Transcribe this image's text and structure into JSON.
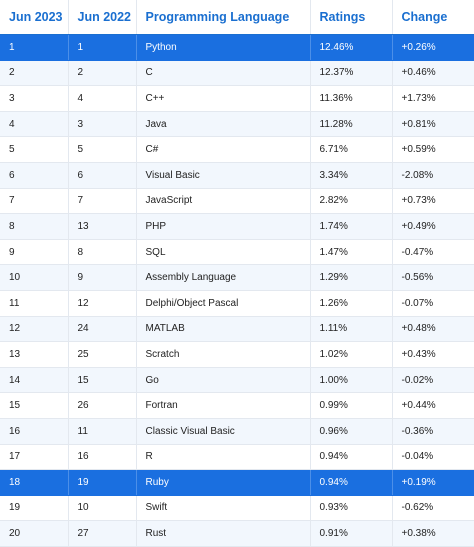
{
  "table": {
    "headers": [
      "Jun 2023",
      "Jun 2022",
      "Programming Language",
      "Ratings",
      "Change"
    ],
    "rows": [
      {
        "jun2023": "1",
        "jun2022": "1",
        "language": "Python",
        "rating": "12.46%",
        "change": "+0.26%",
        "highlighted": true
      },
      {
        "jun2023": "2",
        "jun2022": "2",
        "language": "C",
        "rating": "12.37%",
        "change": "+0.46%",
        "highlighted": false
      },
      {
        "jun2023": "3",
        "jun2022": "4",
        "language": "C++",
        "rating": "11.36%",
        "change": "+1.73%",
        "highlighted": false
      },
      {
        "jun2023": "4",
        "jun2022": "3",
        "language": "Java",
        "rating": "11.28%",
        "change": "+0.81%",
        "highlighted": false
      },
      {
        "jun2023": "5",
        "jun2022": "5",
        "language": "C#",
        "rating": "6.71%",
        "change": "+0.59%",
        "highlighted": false
      },
      {
        "jun2023": "6",
        "jun2022": "6",
        "language": "Visual Basic",
        "rating": "3.34%",
        "change": "-2.08%",
        "highlighted": false
      },
      {
        "jun2023": "7",
        "jun2022": "7",
        "language": "JavaScript",
        "rating": "2.82%",
        "change": "+0.73%",
        "highlighted": false
      },
      {
        "jun2023": "8",
        "jun2022": "13",
        "language": "PHP",
        "rating": "1.74%",
        "change": "+0.49%",
        "highlighted": false
      },
      {
        "jun2023": "9",
        "jun2022": "8",
        "language": "SQL",
        "rating": "1.47%",
        "change": "-0.47%",
        "highlighted": false
      },
      {
        "jun2023": "10",
        "jun2022": "9",
        "language": "Assembly Language",
        "rating": "1.29%",
        "change": "-0.56%",
        "highlighted": false
      },
      {
        "jun2023": "11",
        "jun2022": "12",
        "language": "Delphi/Object Pascal",
        "rating": "1.26%",
        "change": "-0.07%",
        "highlighted": false
      },
      {
        "jun2023": "12",
        "jun2022": "24",
        "language": "MATLAB",
        "rating": "1.11%",
        "change": "+0.48%",
        "highlighted": false
      },
      {
        "jun2023": "13",
        "jun2022": "25",
        "language": "Scratch",
        "rating": "1.02%",
        "change": "+0.43%",
        "highlighted": false
      },
      {
        "jun2023": "14",
        "jun2022": "15",
        "language": "Go",
        "rating": "1.00%",
        "change": "-0.02%",
        "highlighted": false
      },
      {
        "jun2023": "15",
        "jun2022": "26",
        "language": "Fortran",
        "rating": "0.99%",
        "change": "+0.44%",
        "highlighted": false
      },
      {
        "jun2023": "16",
        "jun2022": "11",
        "language": "Classic Visual Basic",
        "rating": "0.96%",
        "change": "-0.36%",
        "highlighted": false
      },
      {
        "jun2023": "17",
        "jun2022": "16",
        "language": "R",
        "rating": "0.94%",
        "change": "-0.04%",
        "highlighted": false
      },
      {
        "jun2023": "18",
        "jun2022": "19",
        "language": "Ruby",
        "rating": "0.94%",
        "change": "+0.19%",
        "highlighted": true
      },
      {
        "jun2023": "19",
        "jun2022": "10",
        "language": "Swift",
        "rating": "0.93%",
        "change": "-0.62%",
        "highlighted": false
      },
      {
        "jun2023": "20",
        "jun2022": "27",
        "language": "Rust",
        "rating": "0.91%",
        "change": "+0.38%",
        "highlighted": false
      }
    ]
  },
  "colors": {
    "header_text": "#1a6fd0",
    "highlight_row": "#1a6fe0",
    "stripe": "#f2f7fd"
  }
}
